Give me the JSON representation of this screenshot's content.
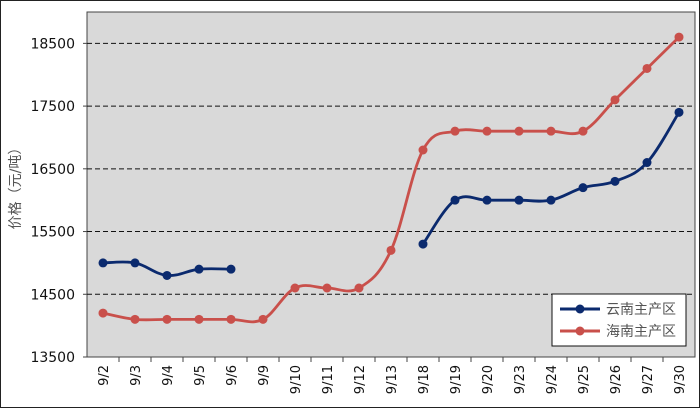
{
  "chart_data": {
    "type": "line",
    "ylabel": "价格（元/吨）",
    "xlabel": "",
    "ylim": [
      13500,
      19000
    ],
    "yticks": [
      13500,
      14500,
      15500,
      16500,
      17500,
      18500
    ],
    "grid": "horizontal-dashed",
    "legend": "bottom-right",
    "categories": [
      "9/2",
      "9/3",
      "9/4",
      "9/5",
      "9/6",
      "9/9",
      "9/10",
      "9/11",
      "9/12",
      "9/13",
      "9/18",
      "9/19",
      "9/20",
      "9/23",
      "9/24",
      "9/25",
      "9/26",
      "9/27",
      "9/30"
    ],
    "series": [
      {
        "name": "云南主产区",
        "color": "#0b2a6e",
        "values": [
          15000,
          15000,
          14800,
          14900,
          14900,
          null,
          null,
          null,
          null,
          null,
          15300,
          16000,
          16000,
          16000,
          16000,
          16200,
          16300,
          16600,
          17400
        ]
      },
      {
        "name": "海南主产区",
        "color": "#c9504b",
        "values": [
          14200,
          14100,
          14100,
          14100,
          14100,
          14100,
          14600,
          14600,
          14600,
          15200,
          16800,
          17100,
          17100,
          17100,
          17100,
          17100,
          17600,
          18100,
          18600
        ]
      }
    ],
    "plot_background": "#d9d9d9"
  }
}
